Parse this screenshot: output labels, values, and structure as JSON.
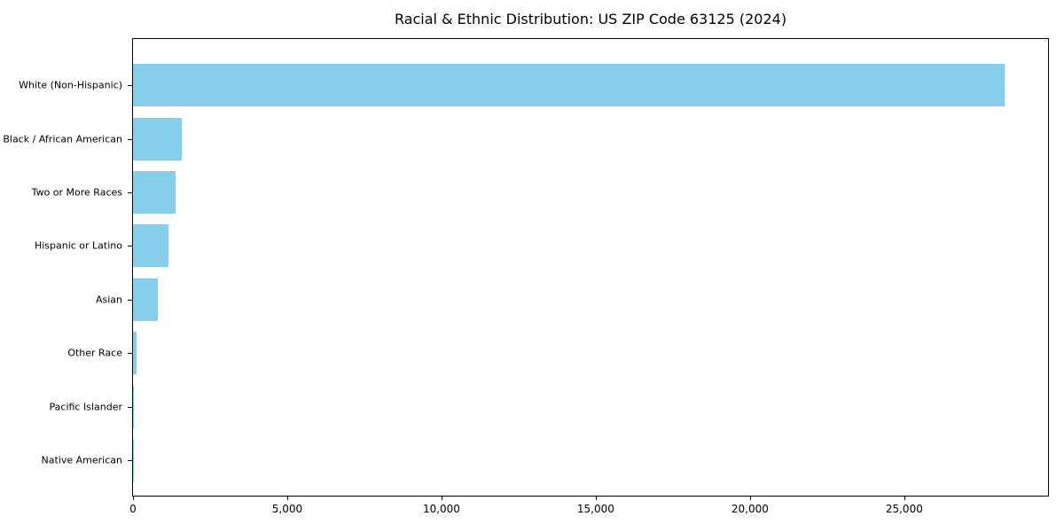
{
  "chart_data": {
    "type": "bar",
    "orientation": "horizontal",
    "title": "Racial & Ethnic Distribution: US ZIP Code 63125 (2024)",
    "categories": [
      "White (Non-Hispanic)",
      "Black / African American",
      "Two or More Races",
      "Hispanic or Latino",
      "Asian",
      "Other Race",
      "Pacific Islander",
      "Native American"
    ],
    "values": [
      28250,
      1575,
      1375,
      1150,
      800,
      115,
      15,
      8
    ],
    "xlabel": "",
    "ylabel": "",
    "xlim": [
      0,
      29660
    ],
    "xticks": [
      0,
      5000,
      10000,
      15000,
      20000,
      25000
    ],
    "xtick_labels": [
      "0",
      "5,000",
      "10,000",
      "15,000",
      "20,000",
      "25,000"
    ],
    "bar_color": "#87CEEB",
    "background_color": "#ffffff",
    "spine_color": "#000000",
    "grid": false,
    "legend": "none",
    "sort_order": "descending"
  }
}
